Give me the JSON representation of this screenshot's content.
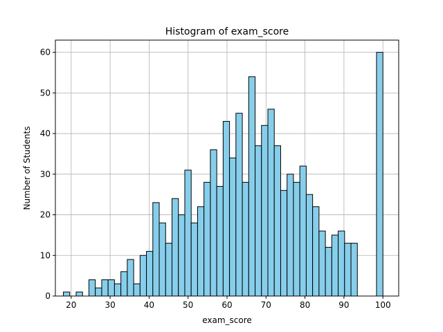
{
  "chart_data": {
    "type": "bar",
    "title": "Histogram of exam_score",
    "xlabel": "exam_score",
    "ylabel": "Number of Students",
    "xlim": [
      15.95,
      104.05
    ],
    "ylim": [
      0,
      63
    ],
    "xticks": [
      20,
      30,
      40,
      50,
      60,
      70,
      80,
      90,
      100
    ],
    "yticks": [
      0,
      10,
      20,
      30,
      40,
      50,
      60
    ],
    "grid": true,
    "bar_color": "#87CEEB",
    "edge_color": "#000000",
    "bin_edges": [
      18.0,
      19.64,
      21.28,
      22.92,
      24.56,
      26.2,
      27.84,
      29.48,
      31.12,
      32.76,
      34.4,
      36.04,
      37.68,
      39.32,
      40.96,
      42.6,
      44.24,
      45.88,
      47.52,
      49.16,
      50.8,
      52.44,
      54.08,
      55.72,
      57.36,
      59.0,
      60.64,
      62.28,
      63.92,
      65.56,
      67.2,
      68.84,
      70.48,
      72.12,
      73.76,
      75.4,
      77.04,
      78.68,
      80.32,
      81.96,
      83.6,
      85.24,
      86.88,
      88.52,
      90.16,
      91.8,
      93.44,
      95.08,
      96.72,
      98.36,
      100.0
    ],
    "counts": [
      1,
      0,
      1,
      0,
      4,
      2,
      4,
      4,
      3,
      6,
      9,
      3,
      10,
      11,
      23,
      18,
      13,
      24,
      20,
      31,
      18,
      22,
      28,
      36,
      27,
      43,
      34,
      45,
      28,
      54,
      37,
      42,
      46,
      37,
      26,
      30,
      28,
      32,
      25,
      22,
      16,
      12,
      15,
      16,
      13,
      13,
      0,
      0,
      0,
      60
    ]
  }
}
